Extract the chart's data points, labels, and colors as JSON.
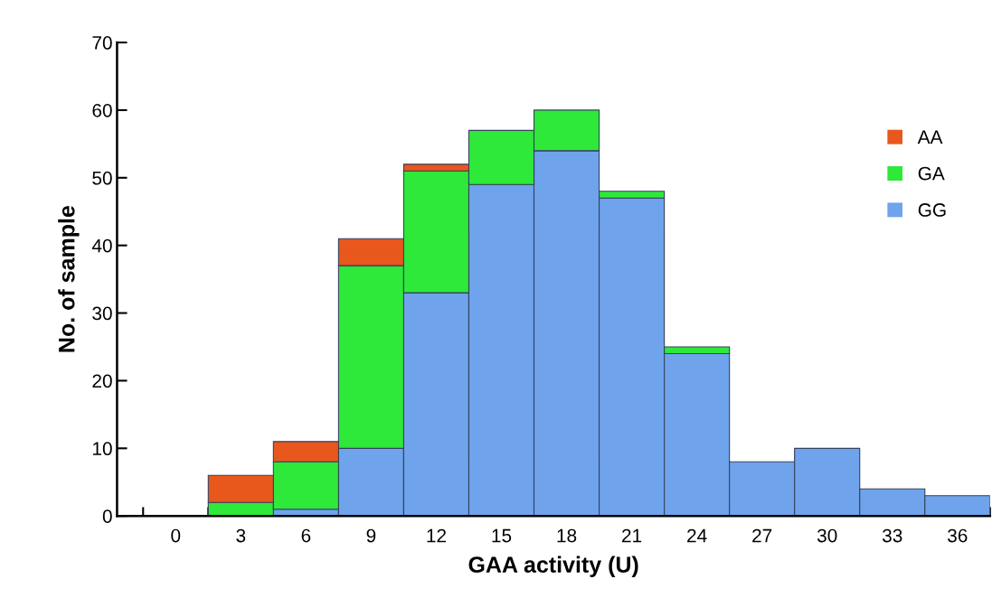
{
  "chart_data": {
    "type": "bar",
    "stacked": true,
    "xlabel": "GAA activity (U)",
    "ylabel": "No. of sample",
    "categories": [
      "0",
      "3",
      "6",
      "9",
      "12",
      "15",
      "18",
      "21",
      "24",
      "27",
      "30",
      "33",
      "36"
    ],
    "series": [
      {
        "name": "GG",
        "color": "#6fa3ec",
        "values": [
          0,
          0,
          1,
          10,
          33,
          49,
          54,
          47,
          24,
          8,
          10,
          4,
          3
        ]
      },
      {
        "name": "GA",
        "color": "#2ee83a",
        "values": [
          0,
          2,
          7,
          27,
          18,
          8,
          6,
          1,
          1,
          0,
          0,
          0,
          0
        ]
      },
      {
        "name": "AA",
        "color": "#e8571c",
        "values": [
          0,
          4,
          3,
          4,
          1,
          0,
          0,
          0,
          0,
          0,
          0,
          0,
          0
        ]
      }
    ],
    "ylim": [
      0,
      70
    ],
    "yticks": [
      0,
      10,
      20,
      30,
      40,
      50,
      60,
      70
    ],
    "grid": false,
    "legend": "right"
  }
}
